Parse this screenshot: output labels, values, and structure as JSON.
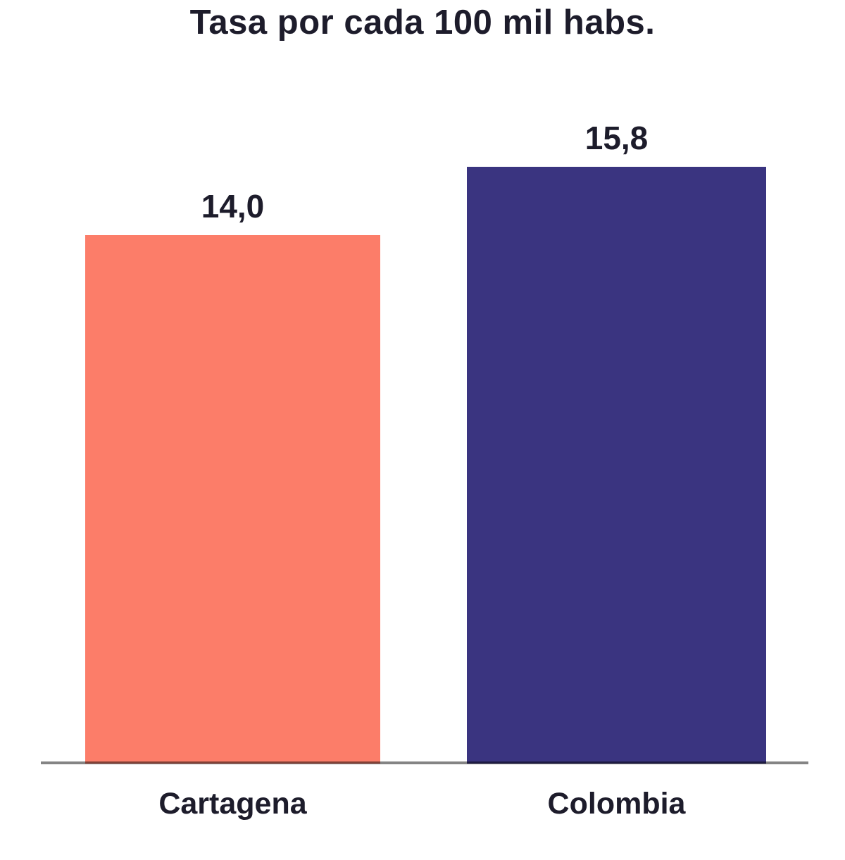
{
  "chart_data": {
    "type": "bar",
    "title": "Tasa por cada 100 mil habs.",
    "categories": [
      "Cartagena",
      "Colombia"
    ],
    "values": [
      14.0,
      15.8
    ],
    "value_labels": [
      "14,0",
      "15,8"
    ],
    "series_colors": [
      "#fc7d69",
      "#3a3480"
    ],
    "text_color": "#1d1c2b",
    "axis_line_color": "#848484",
    "xlabel": "",
    "ylabel": "",
    "ylim": [
      0,
      18
    ],
    "grid": false,
    "legend": "none"
  }
}
